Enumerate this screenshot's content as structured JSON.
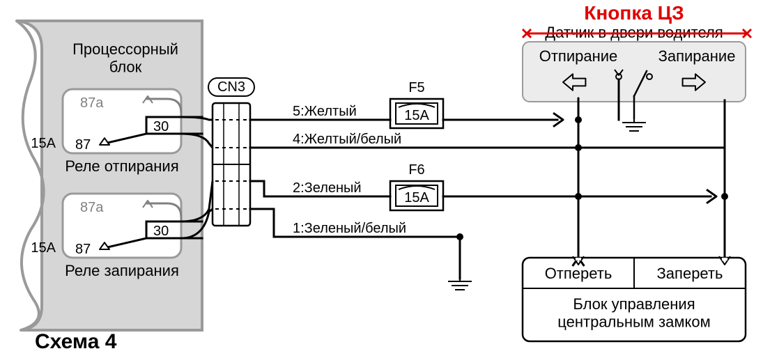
{
  "title_red": "Кнопка ЦЗ",
  "title_striked": "Датчик в двери водителя",
  "processor_block": "Процессорный\nблок",
  "relay_unlock_label": "Реле отпирания",
  "relay_lock_label": "Реле запирания",
  "relay_contact_87a": "87a",
  "relay_contact_87": "87",
  "relay_contact_30": "30",
  "relay_amps": "15A",
  "connector": "CN3",
  "fuse_f5": "F5",
  "fuse_f6": "F6",
  "fuse_amps": "15A",
  "wire5": "5:Желтый",
  "wire4": "4:Желтый/белый",
  "wire2": "2:Зеленый",
  "wire1": "1:Зеленый/белый",
  "switch_unlock": "Отпирание",
  "switch_lock": "Запирание",
  "ctrl_unlock": "Отпереть",
  "ctrl_lock": "Запереть",
  "ctrl_block": "Блок управления\nцентральным замком",
  "scheme": "Схема 4",
  "colors": {
    "red": "#e00000",
    "black": "#000000",
    "grey_fill": "#d6d6d6",
    "grey_stroke": "#9a9a9a",
    "light_grey": "#ececec",
    "mid_grey": "#808080",
    "white": "#ffffff"
  },
  "stroke": {
    "thin": 2,
    "thick": 3
  },
  "font": {
    "body": 22,
    "small": 20,
    "title": 28,
    "scheme": 30
  }
}
